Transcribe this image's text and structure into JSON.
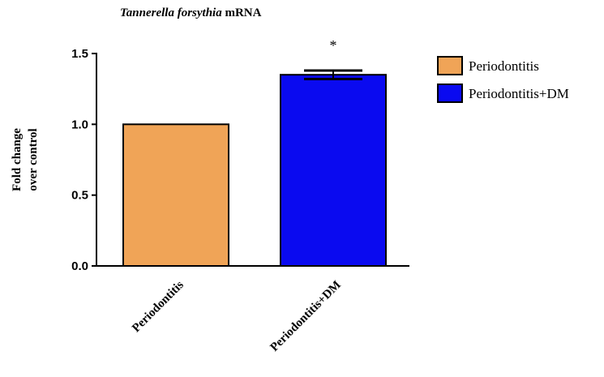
{
  "chart_data": {
    "type": "bar",
    "title_italic": "Tannerella forsythia",
    "title_rest": " mRNA",
    "ylabel_line1": "Fold change",
    "ylabel_line2": "over control",
    "categories": [
      "Periodontitis",
      "Periodontitis+DM"
    ],
    "values": [
      1.0,
      1.35
    ],
    "errors": [
      0,
      0.03
    ],
    "colors": [
      "#F0A457",
      "#0A0AF0"
    ],
    "ylim": [
      0,
      1.5
    ],
    "yticks": [
      "0.0",
      "0.5",
      "1.0",
      "1.5"
    ],
    "legend": [
      "Periodontitis",
      "Periodontitis+DM"
    ],
    "legend_position": "top-right",
    "annotation": "*",
    "grid": false
  }
}
